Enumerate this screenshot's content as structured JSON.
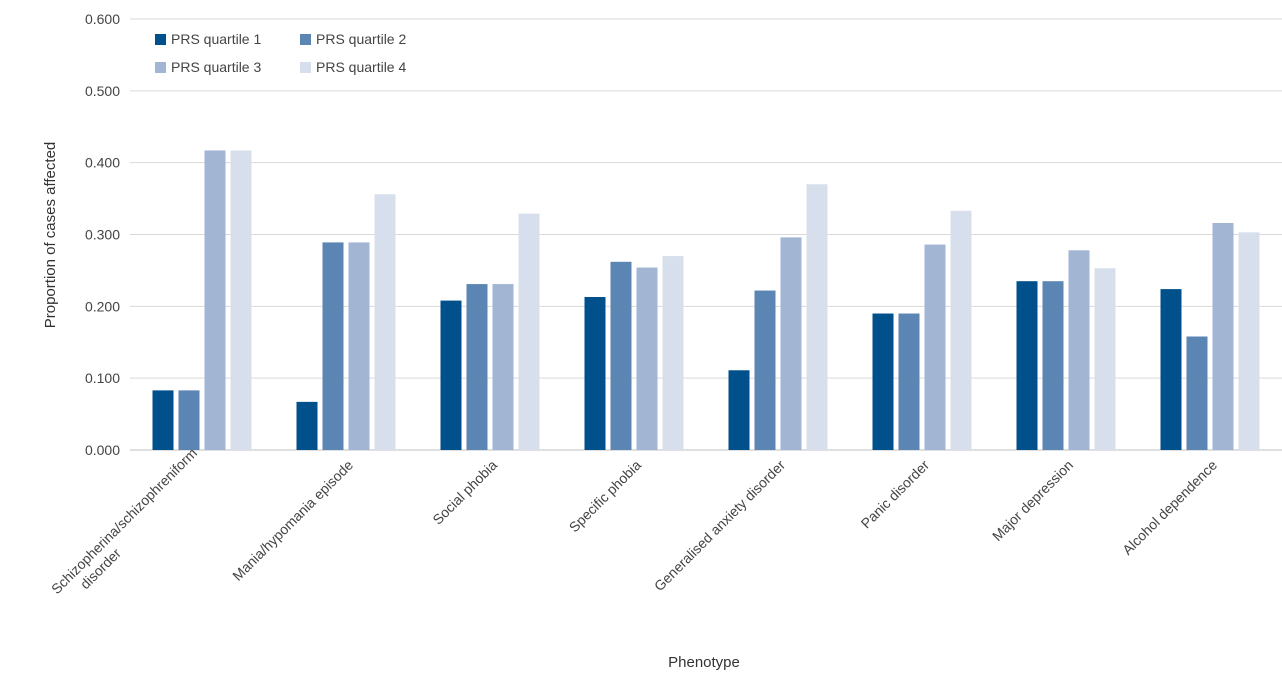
{
  "chart_data": {
    "type": "bar",
    "title": "",
    "xlabel": "Phenotype",
    "ylabel": "Proportion of cases affected",
    "ylim": [
      0,
      0.6
    ],
    "yticks": [
      "0.000",
      "0.100",
      "0.200",
      "0.300",
      "0.400",
      "0.500",
      "0.600"
    ],
    "grid": true,
    "legend_position": "top-left",
    "categories": [
      [
        "Schizopherina/schizophreniform",
        "disorder"
      ],
      [
        "Mania/hypomania episode"
      ],
      [
        "Social phobia"
      ],
      [
        "Specific phobia"
      ],
      [
        "Generalised anxiety disorder"
      ],
      [
        "Panic disorder"
      ],
      [
        "Major depression"
      ],
      [
        "Alcohol dependence"
      ]
    ],
    "series": [
      {
        "name": "PRS quartile 1",
        "color": "#00508c",
        "values": [
          0.083,
          0.067,
          0.208,
          0.213,
          0.111,
          0.19,
          0.235,
          0.224
        ]
      },
      {
        "name": "PRS quartile 2",
        "color": "#5b86b4",
        "values": [
          0.083,
          0.289,
          0.231,
          0.262,
          0.222,
          0.19,
          0.235,
          0.158
        ]
      },
      {
        "name": "PRS quartile 3",
        "color": "#a2b6d4",
        "values": [
          0.417,
          0.289,
          0.231,
          0.254,
          0.296,
          0.286,
          0.278,
          0.316
        ]
      },
      {
        "name": "PRS quartile 4",
        "color": "#d7dfec",
        "values": [
          0.417,
          0.356,
          0.329,
          0.27,
          0.37,
          0.333,
          0.253,
          0.303
        ]
      }
    ]
  }
}
